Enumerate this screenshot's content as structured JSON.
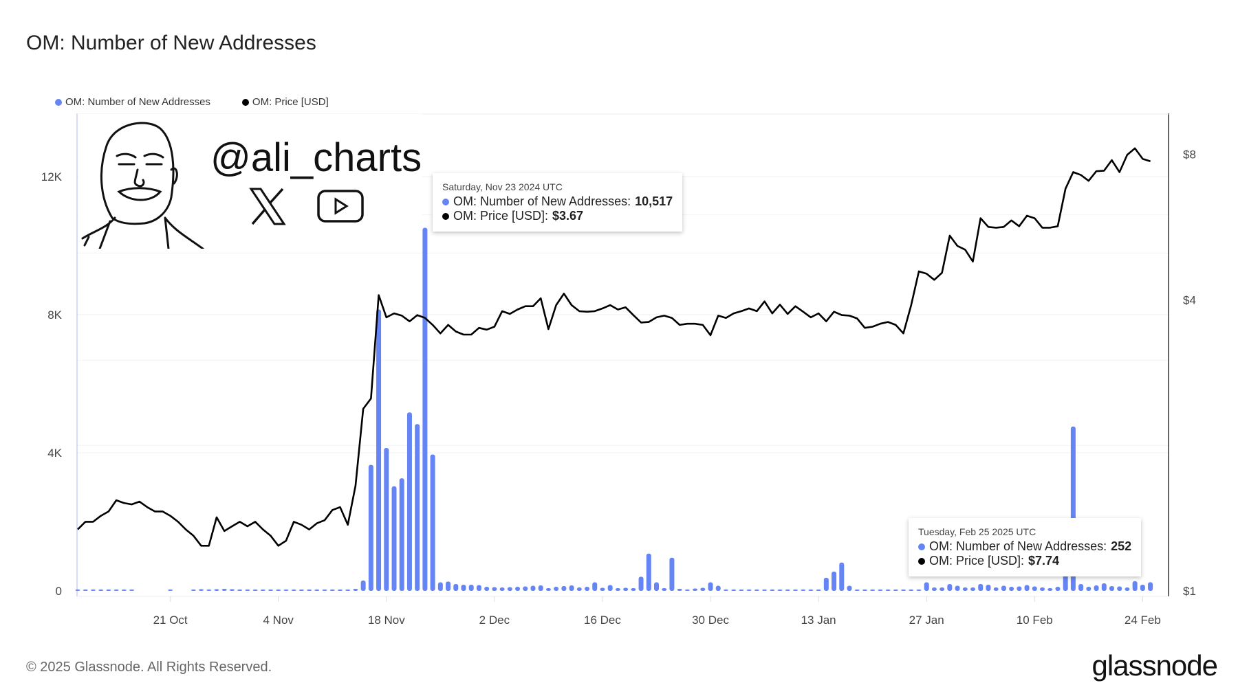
{
  "title": "OM: Number of New Addresses",
  "legend": [
    {
      "label": "OM: Number of New Addresses",
      "color": "#6685f4"
    },
    {
      "label": "OM: Price [USD]",
      "color": "#000000"
    }
  ],
  "watermark": {
    "handle": "@ali_charts",
    "icons": [
      "x-logo-icon",
      "youtube-icon"
    ]
  },
  "tooltips": [
    {
      "date": "Saturday, Nov 23 2024 UTC",
      "series1_label": "OM: Number of New Addresses:",
      "series1_value": "10,517",
      "series2_label": "OM: Price [USD]:",
      "series2_value": "$3.67"
    },
    {
      "date": "Tuesday, Feb 25 2025 UTC",
      "series1_label": "OM: Number of New Addresses:",
      "series1_value": "252",
      "series2_label": "OM: Price [USD]:",
      "series2_value": "$7.74"
    }
  ],
  "footer": {
    "copyright": "© 2025 Glassnode. All Rights Reserved.",
    "brand": "glassnode"
  },
  "chart_data": {
    "type": "bar+line",
    "title": "OM: Number of New Addresses",
    "x_start": "2024-10-09",
    "x_end": "2025-02-25",
    "x_ticks": [
      {
        "label": "21 Oct",
        "day": 12
      },
      {
        "label": "4 Nov",
        "day": 26
      },
      {
        "label": "18 Nov",
        "day": 40
      },
      {
        "label": "2 Dec",
        "day": 54
      },
      {
        "label": "16 Dec",
        "day": 68
      },
      {
        "label": "30 Dec",
        "day": 82
      },
      {
        "label": "13 Jan",
        "day": 96
      },
      {
        "label": "27 Jan",
        "day": 110
      },
      {
        "label": "10 Feb",
        "day": 124
      },
      {
        "label": "24 Feb",
        "day": 138
      }
    ],
    "y_left": {
      "ticks": [
        {
          "label": "0",
          "value": 0
        },
        {
          "label": "4K",
          "value": 4000
        },
        {
          "label": "8K",
          "value": 8000
        },
        {
          "label": "12K",
          "value": 12000
        }
      ],
      "scale": "linear"
    },
    "y_right": {
      "ticks": [
        {
          "label": "$1",
          "value": 1
        },
        {
          "label": "$4",
          "value": 4
        },
        {
          "label": "$8",
          "value": 8
        }
      ],
      "scale": "log"
    },
    "legend_position": "top-left",
    "series": [
      {
        "name": "OM: Number of New Addresses",
        "type": "bar",
        "axis": "left",
        "color": "#6685f4",
        "values": [
          20,
          20,
          20,
          20,
          20,
          20,
          20,
          20,
          0,
          0,
          0,
          0,
          20,
          0,
          0,
          40,
          50,
          40,
          50,
          60,
          50,
          40,
          30,
          30,
          30,
          30,
          20,
          20,
          20,
          20,
          20,
          20,
          20,
          20,
          20,
          20,
          60,
          300,
          3650,
          8150,
          4140,
          3030,
          3260,
          5170,
          4830,
          10517,
          3950,
          250,
          270,
          200,
          180,
          180,
          170,
          120,
          110,
          100,
          110,
          120,
          130,
          150,
          160,
          80,
          120,
          140,
          160,
          100,
          120,
          250,
          90,
          170,
          80,
          90,
          80,
          410,
          1080,
          250,
          80,
          960,
          60,
          40,
          70,
          90,
          250,
          150,
          20,
          20,
          20,
          20,
          20,
          20,
          20,
          20,
          20,
          20,
          20,
          20,
          20,
          380,
          560,
          820,
          150,
          20,
          20,
          20,
          20,
          20,
          20,
          20,
          30,
          40,
          250,
          100,
          100,
          200,
          150,
          100,
          100,
          200,
          180,
          100,
          150,
          120,
          130,
          170,
          130,
          100,
          80,
          120,
          700,
          4760,
          200,
          120,
          160,
          220,
          140,
          130,
          100,
          280,
          180,
          252
        ]
      },
      {
        "name": "OM: Price [USD]",
        "type": "line",
        "axis": "right",
        "color": "#000000",
        "values": [
          1.34,
          1.39,
          1.39,
          1.43,
          1.46,
          1.54,
          1.52,
          1.51,
          1.53,
          1.49,
          1.46,
          1.46,
          1.43,
          1.39,
          1.34,
          1.3,
          1.24,
          1.24,
          1.42,
          1.33,
          1.36,
          1.39,
          1.36,
          1.39,
          1.34,
          1.3,
          1.24,
          1.27,
          1.39,
          1.37,
          1.34,
          1.38,
          1.4,
          1.47,
          1.49,
          1.37,
          1.65,
          2.38,
          2.5,
          4.09,
          3.68,
          3.75,
          3.71,
          3.61,
          3.72,
          3.67,
          3.55,
          3.41,
          3.55,
          3.44,
          3.39,
          3.39,
          3.5,
          3.47,
          3.52,
          3.79,
          3.74,
          3.82,
          3.88,
          3.88,
          4.03,
          3.48,
          3.9,
          4.12,
          3.9,
          3.79,
          3.78,
          3.79,
          3.84,
          3.9,
          3.82,
          3.86,
          3.72,
          3.59,
          3.6,
          3.68,
          3.71,
          3.67,
          3.55,
          3.57,
          3.57,
          3.55,
          3.38,
          3.71,
          3.67,
          3.75,
          3.79,
          3.84,
          3.79,
          3.97,
          3.75,
          3.91,
          3.74,
          3.88,
          3.78,
          3.68,
          3.75,
          3.61,
          3.78,
          3.72,
          3.71,
          3.66,
          3.5,
          3.52,
          3.57,
          3.6,
          3.55,
          3.41,
          3.9,
          4.58,
          4.53,
          4.4,
          4.55,
          5.43,
          5.17,
          5.08,
          4.8,
          5.9,
          5.66,
          5.64,
          5.66,
          5.84,
          5.68,
          5.97,
          5.9,
          5.64,
          5.64,
          5.68,
          6.79,
          7.35,
          7.25,
          7.05,
          7.38,
          7.4,
          7.78,
          7.35,
          7.98,
          8.23,
          7.83,
          7.74
        ]
      }
    ]
  }
}
